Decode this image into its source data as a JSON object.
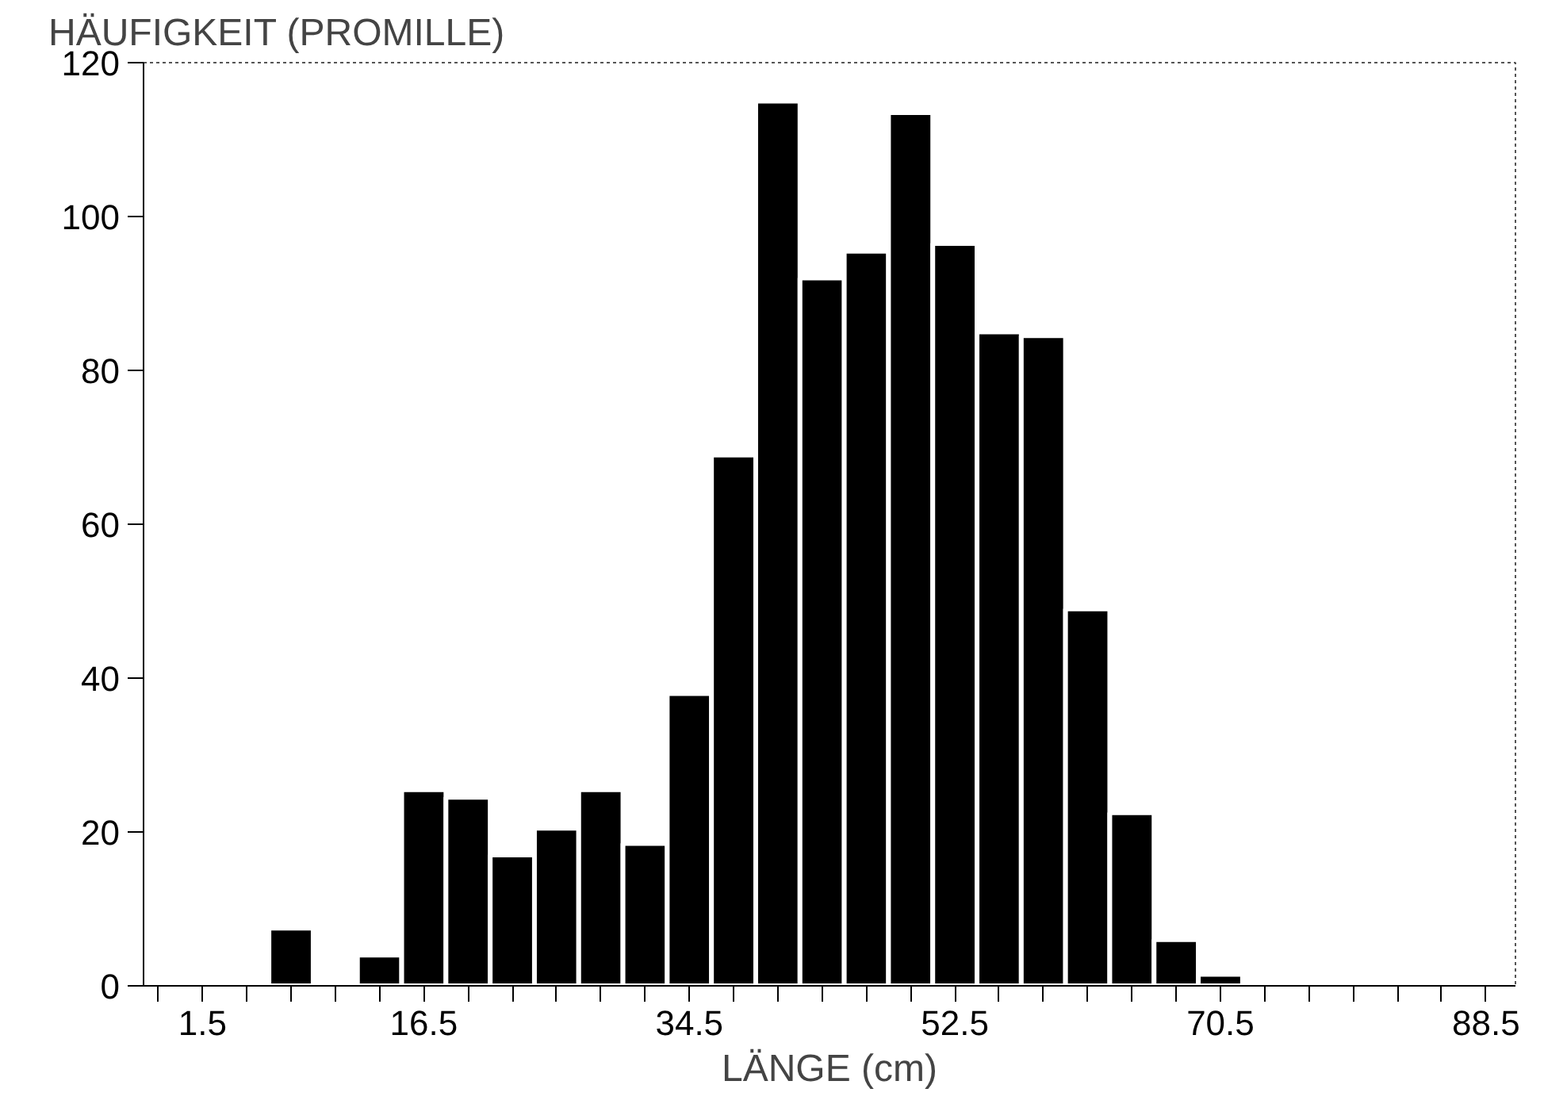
{
  "chart_data": {
    "type": "histogram",
    "xlabel": "LÄNGE (cm)",
    "ylabel": "HÄUFIGKEIT (PROMILLE)",
    "bins": [
      6,
      9,
      12,
      15,
      18,
      21,
      24,
      27,
      30,
      33,
      36,
      39,
      42,
      45,
      48,
      51,
      54,
      57,
      60,
      63,
      66,
      69,
      72
    ],
    "values": [
      7.5,
      0,
      4,
      25.5,
      24.5,
      17,
      20.5,
      25.5,
      18.5,
      38,
      69,
      115,
      92,
      95.5,
      113.5,
      96.5,
      85,
      84.5,
      49,
      22.5,
      6,
      1.5
    ],
    "color": "#000000",
    "xlim": [
      -2.5,
      90.5
    ],
    "xticks": [
      {
        "value": -1.5,
        "label": null
      },
      1.5,
      {
        "value": 4.5,
        "label": null
      },
      {
        "value": 7.5,
        "label": null
      },
      {
        "value": 10.5,
        "label": null
      },
      {
        "value": 13.5,
        "label": null
      },
      16.5,
      {
        "value": 19.5,
        "label": null
      },
      {
        "value": 22.5,
        "label": null
      },
      {
        "value": 25.5,
        "label": null
      },
      {
        "value": 28.5,
        "label": null
      },
      {
        "value": 31.5,
        "label": null
      },
      34.5,
      {
        "value": 37.5,
        "label": null
      },
      {
        "value": 40.5,
        "label": null
      },
      {
        "value": 43.5,
        "label": null
      },
      {
        "value": 46.5,
        "label": null
      },
      {
        "value": 49.5,
        "label": null
      },
      52.5,
      {
        "value": 55.5,
        "label": null
      },
      {
        "value": 58.5,
        "label": null
      },
      {
        "value": 61.5,
        "label": null
      },
      {
        "value": 64.5,
        "label": null
      },
      {
        "value": 67.5,
        "label": null
      },
      70.5,
      {
        "value": 73.5,
        "label": null
      },
      {
        "value": 76.5,
        "label": null
      },
      {
        "value": 79.5,
        "label": null
      },
      {
        "value": 82.5,
        "label": null
      },
      {
        "value": 85.5,
        "label": null
      },
      88.5
    ],
    "ylim": [
      0,
      120
    ],
    "yticks": [
      0,
      20,
      40,
      60,
      80,
      100,
      120
    ],
    "grid": false
  }
}
